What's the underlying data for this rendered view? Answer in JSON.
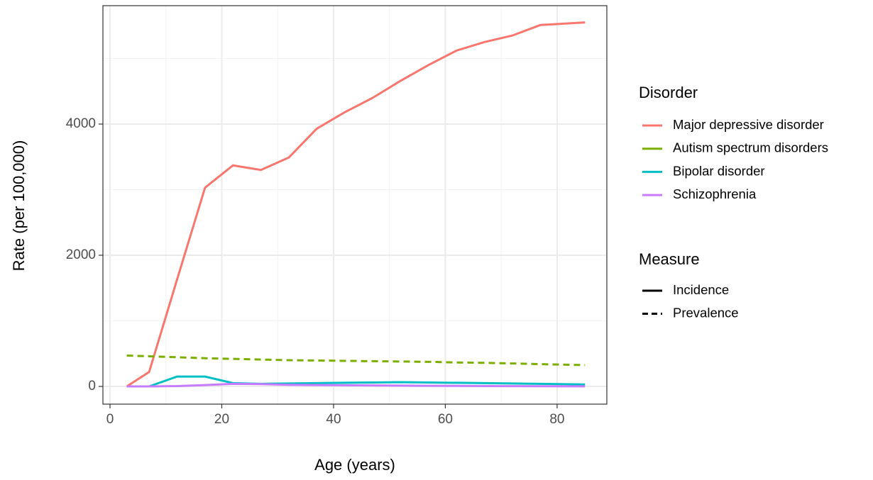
{
  "chart_data": {
    "type": "line",
    "x_label": "Age (years)",
    "y_label": "Rate (per 100,000)",
    "x": [
      3,
      7,
      12,
      17,
      22,
      27,
      32,
      37,
      42,
      47,
      52,
      57,
      62,
      67,
      72,
      77,
      85
    ],
    "series": [
      {
        "name": "Major depressive disorder",
        "color": "#F8766D",
        "linetype": "solid",
        "values": [
          0,
          220,
          1630,
          3030,
          3370,
          3300,
          3490,
          3930,
          4180,
          4400,
          4660,
          4900,
          5120,
          5250,
          5350,
          5510,
          5550
        ]
      },
      {
        "name": "Autism spectrum disorders",
        "color": "#7CAE00",
        "linetype": "dashed",
        "values": [
          470,
          460,
          445,
          430,
          420,
          410,
          400,
          395,
          390,
          385,
          380,
          375,
          365,
          360,
          350,
          340,
          325
        ]
      },
      {
        "name": "Bipolar disorder",
        "color": "#00BFC4",
        "linetype": "solid",
        "values": [
          0,
          0,
          150,
          150,
          50,
          40,
          45,
          50,
          55,
          60,
          65,
          60,
          55,
          50,
          45,
          40,
          30
        ]
      },
      {
        "name": "Schizophrenia",
        "color": "#C77CFF",
        "linetype": "solid",
        "values": [
          0,
          0,
          5,
          20,
          40,
          35,
          25,
          20,
          18,
          15,
          12,
          10,
          8,
          6,
          4,
          3,
          2
        ]
      }
    ],
    "legend_title": "Disorder",
    "measure_legend": {
      "title": "Measure",
      "entries": [
        {
          "name": "Incidence",
          "linetype": "solid"
        },
        {
          "name": "Prevalence",
          "linetype": "dashed"
        }
      ]
    },
    "xlim": [
      -1.27,
      88.9
    ],
    "ylim": [
      -270,
      5805
    ],
    "xticks": [
      0,
      20,
      40,
      60,
      80
    ],
    "yticks": [
      0,
      2000,
      4000
    ],
    "grid": true
  }
}
